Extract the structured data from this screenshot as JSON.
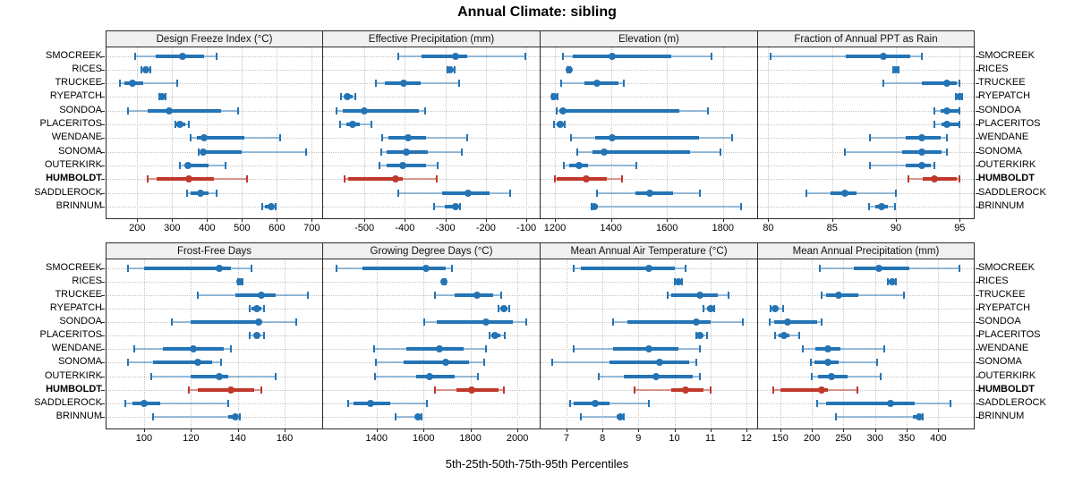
{
  "title": "Annual Climate: sibling",
  "footer": "5th-25th-50th-75th-95th Percentiles",
  "sites": [
    "SMOCREEK",
    "RICES",
    "TRUCKEE",
    "RYEPATCH",
    "SONDOA",
    "PLACERITOS",
    "WENDANE",
    "SONOMA",
    "OUTERKIRK",
    "HUMBOLDT",
    "SADDLEROCK",
    "BRINNUM"
  ],
  "highlight_site": "HUMBOLDT",
  "percentiles": [
    5,
    25,
    50,
    75,
    95
  ],
  "colors": {
    "series": "#2474b5",
    "series_whisker": "rgba(36,116,181,0.45)",
    "highlight": "#c0392b",
    "highlight_whisker": "rgba(192,57,43,0.5)",
    "grid": "#c6c6c6",
    "strip_bg": "#f0f0f0",
    "border": "#2b2b2b"
  },
  "chart_data": [
    {
      "type": "dotplot-percentiles",
      "row": 0,
      "col": 0,
      "title": "Design Freeze Index (°C)",
      "xlim": [
        112,
        730
      ],
      "ticks": [
        200,
        300,
        400,
        500,
        600,
        700
      ],
      "values": [
        [
          195,
          252,
          330,
          392,
          428
        ],
        [
          213,
          219,
          225,
          231,
          237
        ],
        [
          151,
          163,
          187,
          217,
          314
        ],
        [
          264,
          268,
          271,
          275,
          280
        ],
        [
          174,
          230,
          291,
          440,
          490
        ],
        [
          310,
          313,
          322,
          337,
          348
        ],
        [
          354,
          371,
          392,
          507,
          609
        ],
        [
          375,
          383,
          390,
          500,
          685
        ],
        [
          322,
          337,
          345,
          405,
          452
        ],
        [
          230,
          255,
          348,
          420,
          515
        ],
        [
          344,
          354,
          380,
          405,
          428
        ],
        [
          558,
          565,
          583,
          590,
          596
        ]
      ]
    },
    {
      "type": "dotplot-percentiles",
      "row": 0,
      "col": 1,
      "title": "Effective Precipitation (mm)",
      "xlim": [
        -602,
        -67
      ],
      "ticks": [
        -500,
        -400,
        -300,
        -200,
        -100
      ],
      "values": [
        [
          -417,
          -358,
          -274,
          -245,
          -102
        ],
        [
          -295,
          -290,
          -287,
          -281,
          -277
        ],
        [
          -472,
          -450,
          -402,
          -362,
          -267
        ],
        [
          -558,
          -550,
          -543,
          -530,
          -523
        ],
        [
          -569,
          -553,
          -500,
          -366,
          -351
        ],
        [
          -560,
          -545,
          -529,
          -512,
          -483
        ],
        [
          -456,
          -441,
          -393,
          -347,
          -245
        ],
        [
          -458,
          -445,
          -397,
          -343,
          -259
        ],
        [
          -463,
          -445,
          -406,
          -347,
          -319
        ],
        [
          -550,
          -539,
          -423,
          -406,
          -322
        ],
        [
          -416,
          -307,
          -244,
          -191,
          -139
        ],
        [
          -327,
          -302,
          -274,
          -267,
          -263
        ]
      ]
    },
    {
      "type": "dotplot-percentiles",
      "row": 0,
      "col": 2,
      "title": "Elevation (m)",
      "xlim": [
        1149,
        1922
      ],
      "ticks": [
        1200,
        1400,
        1600,
        1800
      ],
      "values": [
        [
          1229,
          1264,
          1404,
          1616,
          1758
        ],
        [
          1246,
          1248,
          1250,
          1252,
          1254
        ],
        [
          1223,
          1304,
          1351,
          1426,
          1447
        ],
        [
          1190,
          1194,
          1198,
          1204,
          1210
        ],
        [
          1208,
          1216,
          1229,
          1643,
          1745
        ],
        [
          1198,
          1205,
          1219,
          1232,
          1235
        ],
        [
          1258,
          1344,
          1404,
          1715,
          1832
        ],
        [
          1279,
          1334,
          1376,
          1684,
          1790
        ],
        [
          1232,
          1252,
          1286,
          1318,
          1492
        ],
        [
          1200,
          1207,
          1312,
          1386,
          1441
        ],
        [
          1349,
          1486,
          1539,
          1621,
          1716
        ],
        [
          1330,
          1337,
          1342,
          1355,
          1866
        ]
      ]
    },
    {
      "type": "dotplot-percentiles",
      "row": 0,
      "col": 3,
      "title": "Fraction of Annual PPT as Rain",
      "xlim": [
        79.2,
        96.1
      ],
      "ticks": [
        80,
        85,
        90,
        95
      ],
      "values": [
        [
          80.2,
          86.1,
          89.0,
          91.1,
          92.0
        ],
        [
          89.8,
          89.9,
          90.0,
          90.1,
          90.2
        ],
        [
          89.0,
          92.0,
          94.0,
          94.8,
          95.0
        ],
        [
          94.7,
          94.8,
          95.0,
          95.1,
          95.2
        ],
        [
          93.0,
          93.5,
          94.0,
          94.9,
          95.0
        ],
        [
          93.0,
          93.6,
          94.0,
          94.9,
          95.0
        ],
        [
          88.0,
          90.8,
          92.0,
          93.5,
          94.0
        ],
        [
          86.0,
          90.5,
          92.0,
          93.6,
          94.0
        ],
        [
          88.0,
          90.8,
          92.0,
          92.7,
          93.0
        ],
        [
          91.0,
          92.1,
          93.0,
          94.8,
          95.0
        ],
        [
          83.0,
          84.9,
          86.0,
          86.9,
          90.0
        ],
        [
          87.9,
          88.4,
          88.9,
          89.4,
          89.9
        ]
      ]
    },
    {
      "type": "dotplot-percentiles",
      "row": 1,
      "col": 0,
      "title": "Frost-Free Days",
      "xlim": [
        84,
        176
      ],
      "ticks": [
        100,
        120,
        140,
        160
      ],
      "values": [
        [
          93,
          100,
          132,
          137,
          146
        ],
        [
          140,
          140.5,
          141,
          141.5,
          142
        ],
        [
          123,
          139,
          150,
          156,
          170
        ],
        [
          145,
          146,
          148,
          150,
          151
        ],
        [
          112,
          120,
          149,
          150,
          165
        ],
        [
          145,
          147,
          148,
          149,
          151
        ],
        [
          96,
          108,
          121,
          134,
          137
        ],
        [
          93,
          104,
          123,
          129,
          133
        ],
        [
          103,
          120,
          132,
          136,
          156
        ],
        [
          119,
          123,
          137,
          147,
          150
        ],
        [
          92,
          95,
          100,
          107,
          136
        ],
        [
          104,
          136,
          139,
          140,
          141
        ]
      ]
    },
    {
      "type": "dotplot-percentiles",
      "row": 1,
      "col": 1,
      "title": "Growing Degree Days (°C)",
      "xlim": [
        1172,
        2095
      ],
      "ticks": [
        1400,
        1600,
        1800,
        2000
      ],
      "values": [
        [
          1230,
          1340,
          1610,
          1695,
          1720
        ],
        [
          1682,
          1685,
          1688,
          1691,
          1694
        ],
        [
          1647,
          1732,
          1827,
          1896,
          1932
        ],
        [
          1919,
          1928,
          1944,
          1957,
          1966
        ],
        [
          1603,
          1656,
          1868,
          1979,
          2036
        ],
        [
          1881,
          1890,
          1906,
          1928,
          1947
        ],
        [
          1390,
          1527,
          1666,
          1770,
          1865
        ],
        [
          1396,
          1516,
          1696,
          1792,
          1858
        ],
        [
          1394,
          1567,
          1624,
          1732,
          1830
        ],
        [
          1649,
          1742,
          1805,
          1919,
          1944
        ],
        [
          1280,
          1301,
          1375,
          1459,
          1615
        ],
        [
          1481,
          1565,
          1577,
          1586,
          1590
        ]
      ]
    },
    {
      "type": "dotplot-percentiles",
      "row": 1,
      "col": 2,
      "title": "Mean Annual Air Temperature (°C)",
      "xlim": [
        6.28,
        12.3
      ],
      "ticks": [
        7,
        8,
        9,
        10,
        11,
        12
      ],
      "values": [
        [
          7.2,
          7.4,
          9.3,
          10.0,
          10.3
        ],
        [
          10.0,
          10.0,
          10.1,
          10.1,
          10.2
        ],
        [
          9.8,
          9.9,
          10.7,
          11.2,
          11.5
        ],
        [
          10.8,
          10.9,
          11.0,
          11.0,
          11.1
        ],
        [
          8.3,
          8.7,
          10.6,
          11.0,
          11.9
        ],
        [
          10.6,
          10.7,
          10.7,
          10.8,
          10.9
        ],
        [
          7.2,
          8.3,
          9.3,
          10.1,
          10.7
        ],
        [
          6.6,
          8.2,
          9.6,
          10.4,
          10.6
        ],
        [
          7.9,
          8.6,
          9.5,
          10.5,
          10.7
        ],
        [
          8.9,
          9.9,
          10.3,
          10.8,
          11.0
        ],
        [
          7.1,
          7.2,
          7.8,
          8.2,
          9.3
        ],
        [
          7.4,
          8.4,
          8.5,
          8.6,
          8.6
        ]
      ]
    },
    {
      "type": "dotplot-percentiles",
      "row": 1,
      "col": 3,
      "title": "Mean Annual Precipitation (mm)",
      "xlim": [
        115,
        456
      ],
      "ticks": [
        150,
        200,
        250,
        300,
        350,
        400
      ],
      "values": [
        [
          212,
          267,
          306,
          354,
          434
        ],
        [
          320,
          322,
          327,
          330,
          333
        ],
        [
          216,
          223,
          243,
          274,
          345
        ],
        [
          135,
          137,
          142,
          147,
          155
        ],
        [
          134,
          141,
          161,
          208,
          216
        ],
        [
          142,
          147,
          156,
          165,
          180
        ],
        [
          186,
          206,
          226,
          245,
          315
        ],
        [
          198,
          204,
          225,
          242,
          303
        ],
        [
          200,
          210,
          231,
          256,
          309
        ],
        [
          139,
          150,
          215,
          225,
          272
        ],
        [
          208,
          222,
          325,
          362,
          419
        ],
        [
          238,
          360,
          370,
          374,
          376
        ]
      ]
    }
  ]
}
